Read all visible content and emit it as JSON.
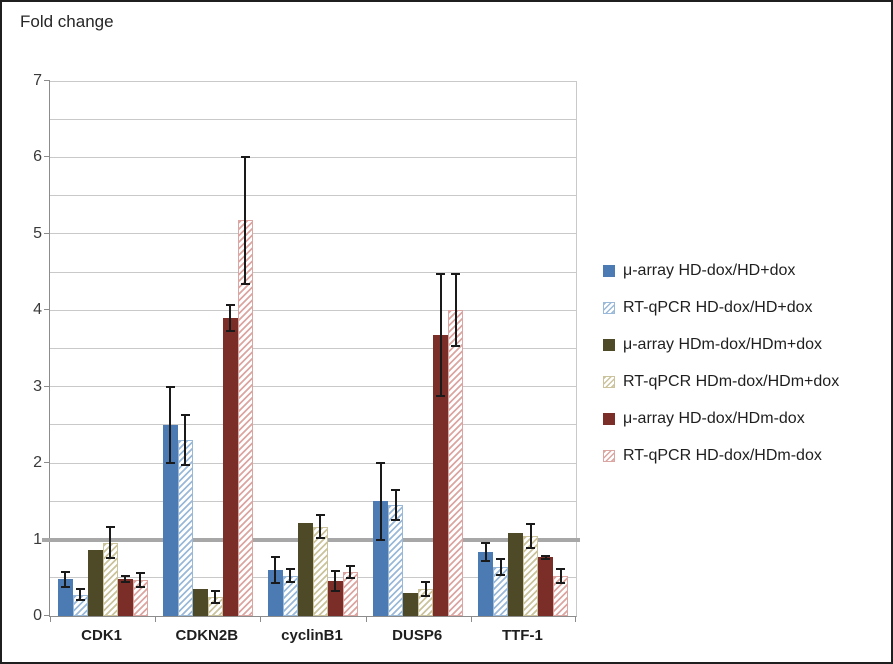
{
  "chart_data": {
    "type": "bar",
    "title": "Fold change",
    "categories": [
      "CDK1",
      "CDKN2B",
      "cyclinB1",
      "DUSP6",
      "TTF-1"
    ],
    "series": [
      {
        "name": "μ-array HD-dox/HD+dox",
        "pattern": "solid",
        "color": "#4b7bb2",
        "values": [
          0.48,
          2.5,
          0.6,
          1.5,
          0.84
        ],
        "errors": [
          0.1,
          0.5,
          0.17,
          0.5,
          0.12
        ]
      },
      {
        "name": "RT-qPCR HD-dox/HD+dox",
        "pattern": "hatched",
        "color": "#9ab9d9",
        "values": [
          0.28,
          2.3,
          0.53,
          1.45,
          0.64
        ],
        "errors": [
          0.07,
          0.33,
          0.09,
          0.2,
          0.1
        ]
      },
      {
        "name": "μ-array HDm-dox/HDm+dox",
        "pattern": "solid",
        "color": "#4e4a28",
        "values": [
          0.86,
          0.36,
          1.22,
          0.3,
          1.08
        ],
        "errors": [
          null,
          null,
          null,
          null,
          null
        ]
      },
      {
        "name": "RT-qPCR HDm-dox/HDm+dox",
        "pattern": "hatched",
        "color": "#cbc39c",
        "values": [
          0.96,
          0.25,
          1.17,
          0.35,
          1.05
        ],
        "errors": [
          0.2,
          0.08,
          0.15,
          0.09,
          0.16
        ]
      },
      {
        "name": "μ-array HD-dox/HDm-dox",
        "pattern": "solid",
        "color": "#7b2e28",
        "values": [
          0.49,
          3.9,
          0.46,
          3.68,
          0.77
        ],
        "errors": [
          0.04,
          0.17,
          0.13,
          0.8,
          0.02
        ]
      },
      {
        "name": "RT-qPCR HD-dox/HDm-dox",
        "pattern": "hatched",
        "color": "#dba5a1",
        "values": [
          0.47,
          5.18,
          0.58,
          4.0,
          0.52
        ],
        "errors": [
          0.09,
          0.83,
          0.08,
          0.47,
          0.09
        ]
      }
    ],
    "xlabel": "",
    "ylabel": "Fold change",
    "ylim": [
      0,
      7
    ],
    "yticks": [
      0,
      1,
      2,
      3,
      4,
      5,
      6,
      7
    ],
    "grid_step": 0.5,
    "grid": true,
    "reference_line": 1,
    "legend_position": "right",
    "colors": {
      "grid": "#c9c9c9",
      "axis": "#8c8c8c",
      "reference_line": "#a7a7a7",
      "error_bar": "#1a1a1a",
      "text": "#262626",
      "hatch_background": "#ffffff"
    }
  }
}
